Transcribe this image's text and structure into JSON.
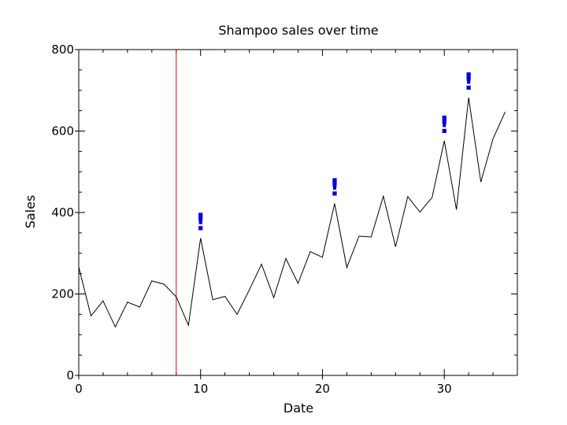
{
  "chart_data": {
    "type": "line",
    "title": "Shampoo sales over time",
    "xlabel": "Date",
    "ylabel": "Sales",
    "xlim": [
      0,
      36
    ],
    "ylim": [
      0,
      800
    ],
    "xticks": [
      0,
      10,
      20,
      30
    ],
    "yticks": [
      0,
      200,
      400,
      600,
      800
    ],
    "grid": false,
    "series": [
      {
        "x": [
          0,
          1,
          2,
          3,
          4,
          5,
          6,
          7,
          8,
          9,
          10,
          11,
          12,
          13,
          14,
          15,
          16,
          17,
          18,
          19,
          20,
          21,
          22,
          23,
          24,
          25,
          26,
          27,
          28,
          29,
          30,
          31,
          32,
          33,
          34,
          35
        ],
        "y": [
          266,
          146,
          183,
          119,
          180,
          168,
          232,
          224,
          193,
          123,
          337,
          186,
          194,
          150,
          210,
          273,
          191,
          287,
          226,
          304,
          290,
          422,
          265,
          342,
          340,
          440,
          316,
          439,
          401,
          437,
          576,
          407,
          682,
          475,
          581,
          647
        ],
        "color": "#000000"
      }
    ],
    "vertical_line": {
      "x": 8,
      "color": "#e00000"
    },
    "annotations": [
      {
        "text": "!",
        "x": 10,
        "y": 337,
        "color": "#0000dd"
      },
      {
        "text": "!",
        "x": 21,
        "y": 422,
        "color": "#0000dd"
      },
      {
        "text": "!",
        "x": 30,
        "y": 576,
        "color": "#0000dd"
      },
      {
        "text": "!",
        "x": 32,
        "y": 682,
        "color": "#0000dd"
      }
    ]
  }
}
